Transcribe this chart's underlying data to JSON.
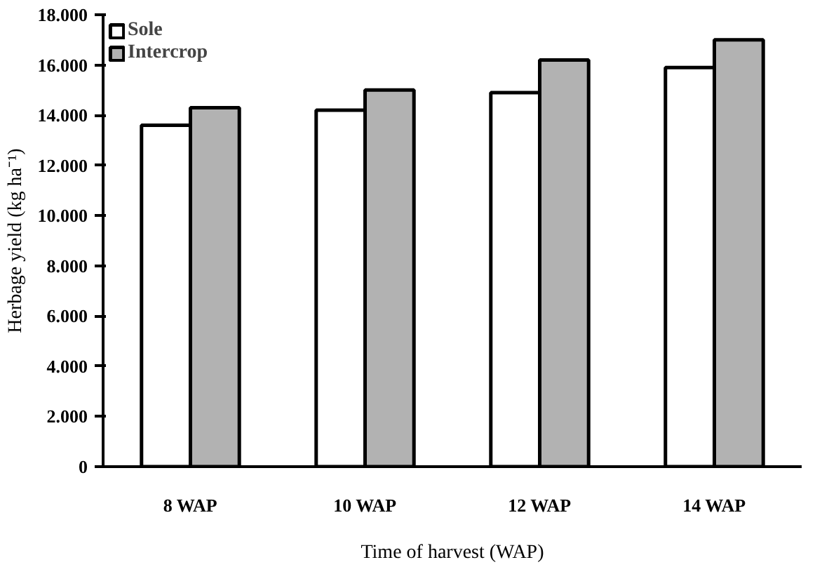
{
  "chart_data": {
    "type": "bar",
    "xlabel": "Time of harvest (WAP)",
    "ylabel": "Herbage yield (kg ha⁻¹)",
    "categories": [
      "8 WAP",
      "10 WAP",
      "12 WAP",
      "14 WAP"
    ],
    "series": [
      {
        "name": "Sole",
        "color": "#ffffff",
        "values": [
          13600,
          14200,
          14900,
          15900
        ]
      },
      {
        "name": "Intercrop",
        "color": "#b2b2b2",
        "values": [
          14300,
          15000,
          16200,
          17000
        ]
      }
    ],
    "ylim": [
      0,
      18000
    ],
    "yticks": [
      0,
      {
        "value": 2000,
        "label": "2.000"
      },
      {
        "value": 4000,
        "label": "4.000"
      },
      {
        "value": 6000,
        "label": "6.000"
      },
      {
        "value": 8000,
        "label": "8.000"
      },
      {
        "value": 10000,
        "label": "10.000"
      },
      {
        "value": 12000,
        "label": "12.000"
      },
      {
        "value": 14000,
        "label": "14.000"
      },
      {
        "value": 16000,
        "label": "16.000"
      },
      {
        "value": 18000,
        "label": "18.000"
      }
    ],
    "legend": "top left",
    "grid": false
  }
}
